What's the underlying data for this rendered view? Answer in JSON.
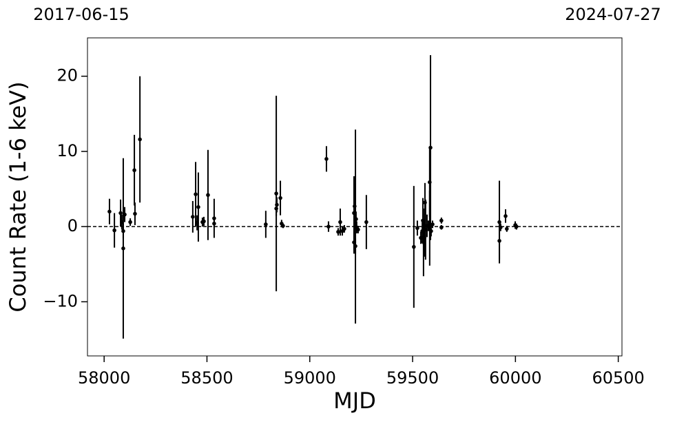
{
  "chart_data": {
    "type": "scatter",
    "xlabel": "MJD",
    "ylabel": "Count Rate (1-6 keV)",
    "x_date_labels": [
      "2017-06-15",
      "2024-07-27"
    ],
    "xlim": [
      57919,
      60518
    ],
    "ylim": [
      -17.2,
      25.1
    ],
    "xticks": [
      58000,
      58500,
      59000,
      59500,
      60000,
      60500
    ],
    "yticks": [
      {
        "value": -10,
        "label": "−10"
      },
      0,
      10,
      20
    ],
    "hline": 0,
    "color": "#000000",
    "x": [
      58026,
      58050,
      58080,
      58086,
      58093,
      58093,
      58100,
      58127,
      58147,
      58150,
      58174,
      58431,
      58445,
      58452,
      58458,
      58478,
      58485,
      58505,
      58535,
      58535,
      58786,
      58837,
      58837,
      58840,
      58857,
      58863,
      58870,
      59081,
      59091,
      59138,
      59148,
      59158,
      59168,
      59215,
      59215,
      59218,
      59222,
      59222,
      59225,
      59228,
      59235,
      59275,
      59506,
      59523,
      59540,
      59547,
      59550,
      59553,
      59557,
      59560,
      59563,
      59570,
      59577,
      59583,
      59583,
      59587,
      59590,
      59597,
      59640,
      59640,
      59922,
      59922,
      59928,
      59952,
      59958,
      59999,
      60005
    ],
    "values": [
      2.0,
      -0.5,
      1.8,
      0.6,
      -2.9,
      -0.6,
      1.6,
      0.6,
      7.5,
      1.7,
      11.6,
      1.3,
      4.3,
      0.5,
      2.6,
      0.6,
      0.7,
      4.2,
      1.1,
      0.4,
      0.3,
      4.4,
      2.4,
      2.9,
      3.8,
      0.4,
      0.1,
      9.0,
      0,
      -0.7,
      0.6,
      -0.6,
      -0.3,
      1.8,
      -2.1,
      2.7,
      0,
      -2.6,
      1.0,
      -0.1,
      -0.4,
      0.6,
      -2.7,
      -0.2,
      -1.5,
      -0.6,
      0.8,
      -2.1,
      -1.5,
      3.2,
      -0.4,
      0.1,
      0.1,
      -0.2,
      5.9,
      10.5,
      -0.6,
      0.3,
      0.8,
      -0.1,
      0.6,
      -1.9,
      -0.1,
      1.4,
      -0.3,
      0.2,
      0
    ],
    "errors": [
      1.7,
      2.3,
      1.8,
      1.0,
      12,
      1.0,
      1.0,
      0.5,
      4.7,
      1.5,
      8.4,
      2.1,
      4.3,
      1.0,
      4.6,
      0.6,
      0.6,
      6,
      2.6,
      0.5,
      1.8,
      13,
      1.0,
      1.0,
      2.3,
      0.5,
      0.3,
      1.7,
      0.7,
      0.5,
      1.8,
      0.6,
      0.5,
      4.9,
      1.5,
      3,
      12.9,
      1.0,
      1.0,
      0.8,
      0.5,
      3.6,
      8.1,
      1.0,
      0.8,
      1.5,
      3,
      4.5,
      2.5,
      2.6,
      4,
      1.5,
      0.7,
      5,
      4.6,
      12.3,
      0.7,
      0.5,
      0.4,
      0.3,
      5.5,
      2.5,
      0.5,
      0.9,
      0.4,
      0.5,
      0.4
    ]
  }
}
